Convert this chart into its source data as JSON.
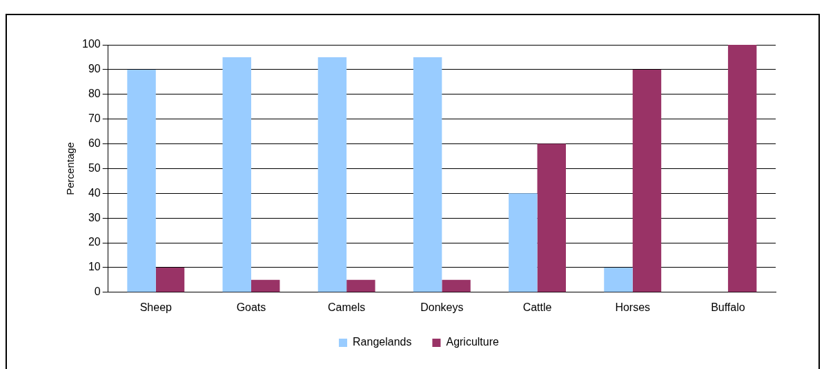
{
  "chart_data": {
    "type": "bar",
    "ylabel": "Percentage",
    "categories": [
      "Sheep",
      "Goats",
      "Camels",
      "Donkeys",
      "Cattle",
      "Horses",
      "Buffalo"
    ],
    "series": [
      {
        "name": "Rangelands",
        "color": "#99ccff",
        "values": [
          90,
          95,
          95,
          95,
          40,
          10,
          0
        ]
      },
      {
        "name": "Agriculture",
        "color": "#993366",
        "values": [
          10,
          5,
          5,
          5,
          60,
          90,
          100
        ]
      }
    ],
    "ylim": [
      0,
      100
    ],
    "yticks": [
      0,
      10,
      20,
      30,
      40,
      50,
      60,
      70,
      80,
      90,
      100
    ],
    "grid": "y",
    "legend": "bottom"
  }
}
